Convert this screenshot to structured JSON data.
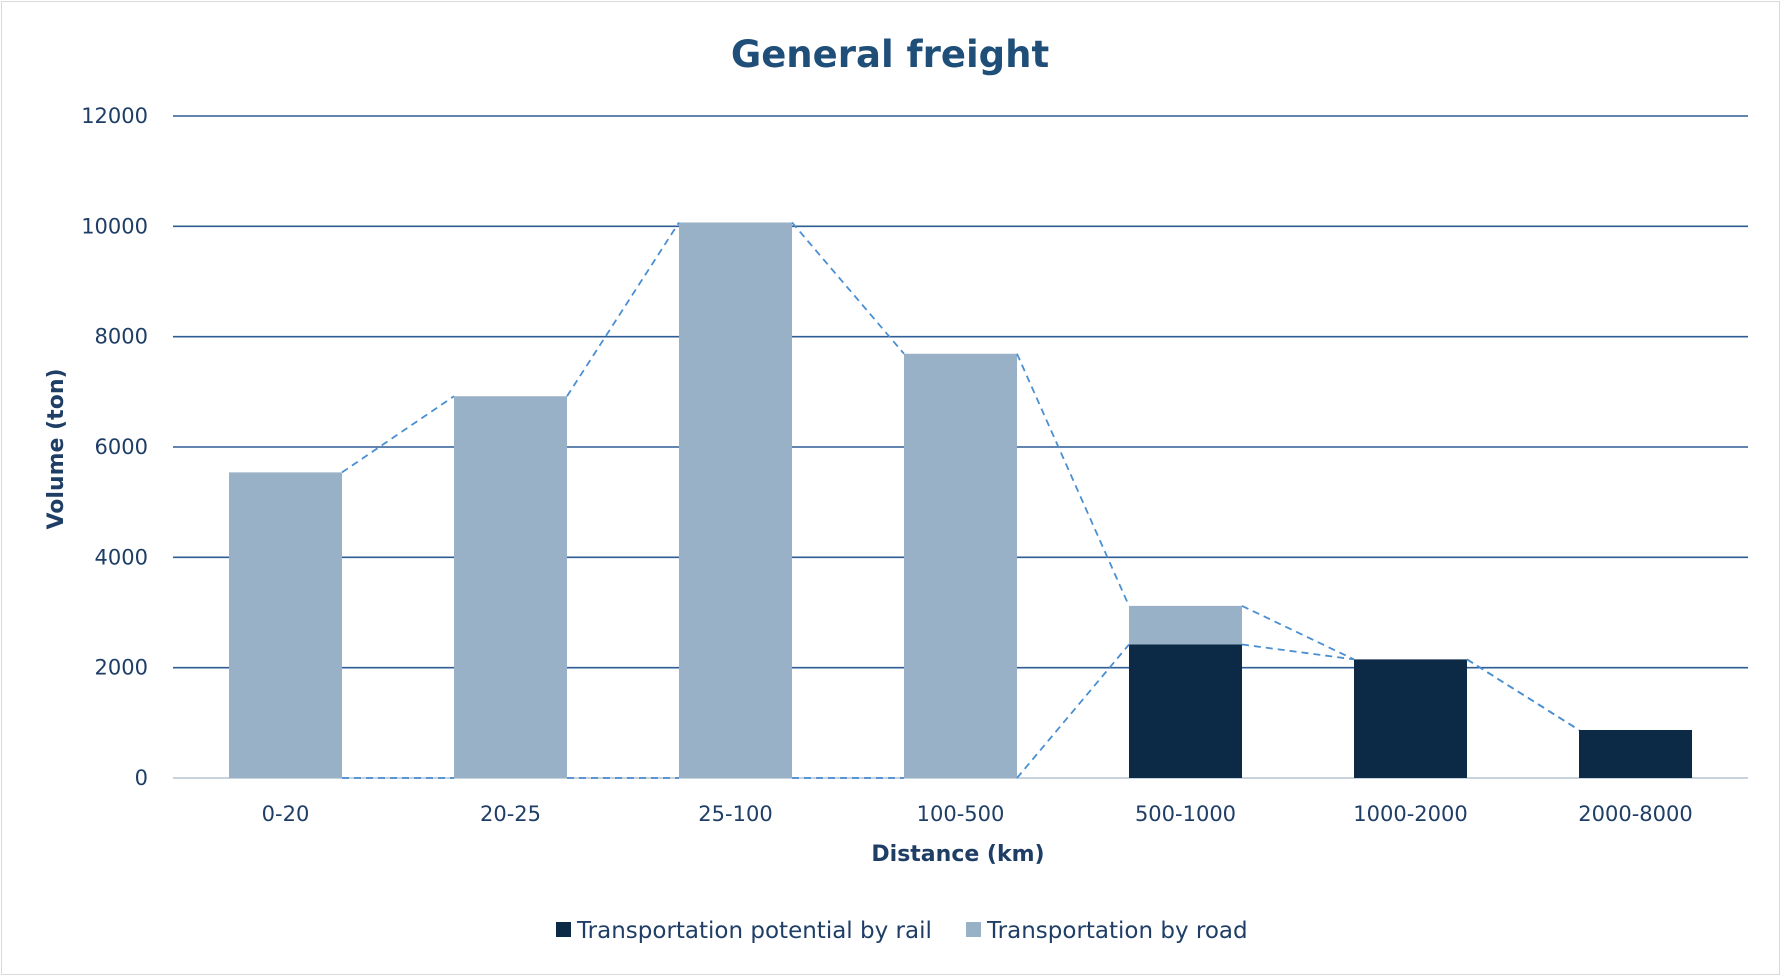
{
  "chart_data": {
    "type": "bar",
    "stacked": true,
    "title": "General freight",
    "xlabel": "Distance (km)",
    "ylabel": "Volume (ton)",
    "ylim": [
      0,
      12000
    ],
    "yticks": [
      "0",
      "2000",
      "4000",
      "6000",
      "8000",
      "10000",
      "12000"
    ],
    "categories": [
      "0-20",
      "20-25",
      "25-100",
      "100-500",
      "500-1000",
      "1000-2000",
      "2000-8000"
    ],
    "series": [
      {
        "name": "Transportation potential by rail",
        "values": [
          0,
          0,
          0,
          0,
          2420,
          2150,
          870
        ],
        "color": "#0c2946"
      },
      {
        "name": "Transportation by road",
        "values": [
          5540,
          6920,
          10070,
          7690,
          700,
          0,
          0
        ],
        "color": "#99b1c6"
      }
    ],
    "connector_lines": "dashed",
    "connector_color": "#4a8fd1",
    "grid": true,
    "grid_color": "#2e5c94",
    "text_color": "#1f3e66",
    "legend_position": "bottom"
  }
}
